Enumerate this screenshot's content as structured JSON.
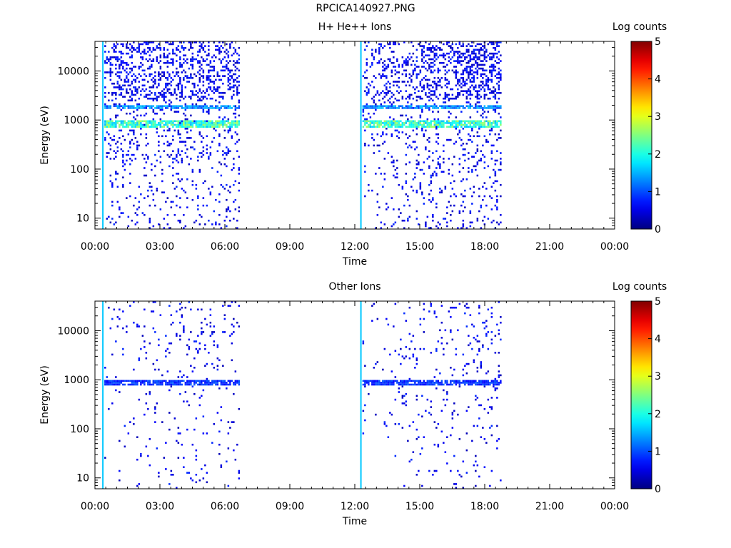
{
  "page": {
    "title": "RPCICA140927.PNG"
  },
  "chart_data": [
    {
      "type": "heatmap",
      "title": "H+ He++ Ions",
      "xlabel": "Time",
      "ylabel": "Energy (eV)",
      "xlim": [
        "00:00",
        "24:00"
      ],
      "xticks": [
        "00:00",
        "03:00",
        "06:00",
        "09:00",
        "12:00",
        "15:00",
        "18:00",
        "21:00",
        "00:00"
      ],
      "ylim": [
        6,
        40000
      ],
      "y_scale": "log",
      "yticks": [
        10,
        100,
        1000,
        10000
      ],
      "ytick_labels": [
        "10",
        "100",
        "1000",
        "10000"
      ],
      "colorbar": {
        "label": "Log counts",
        "range": [
          0,
          5
        ],
        "ticks": [
          "0",
          "1",
          "2",
          "3",
          "4",
          "5"
        ],
        "colormap": "jet"
      },
      "data_intervals": [
        {
          "start": "00:20",
          "end": "06:40"
        },
        {
          "start": "12:15",
          "end": "18:45"
        }
      ],
      "bands": [
        {
          "energy_range": [
            1650,
            2000
          ],
          "level": 1.5
        },
        {
          "energy_range": [
            700,
            950
          ],
          "level": 2.5
        }
      ]
    },
    {
      "type": "heatmap",
      "title": "Other Ions",
      "xlabel": "Time",
      "ylabel": "Energy (eV)",
      "xlim": [
        "00:00",
        "24:00"
      ],
      "xticks": [
        "00:00",
        "03:00",
        "06:00",
        "09:00",
        "12:00",
        "15:00",
        "18:00",
        "21:00",
        "00:00"
      ],
      "ylim": [
        6,
        40000
      ],
      "y_scale": "log",
      "yticks": [
        10,
        100,
        1000,
        10000
      ],
      "ytick_labels": [
        "10",
        "100",
        "1000",
        "10000"
      ],
      "colorbar": {
        "label": "Log counts",
        "range": [
          0,
          5
        ],
        "ticks": [
          "0",
          "1",
          "2",
          "3",
          "4",
          "5"
        ],
        "colormap": "jet"
      },
      "data_intervals": [
        {
          "start": "00:20",
          "end": "06:40"
        },
        {
          "start": "12:15",
          "end": "18:45"
        }
      ],
      "bands": [
        {
          "energy_range": [
            750,
            1000
          ],
          "level": 1.0
        }
      ]
    }
  ]
}
